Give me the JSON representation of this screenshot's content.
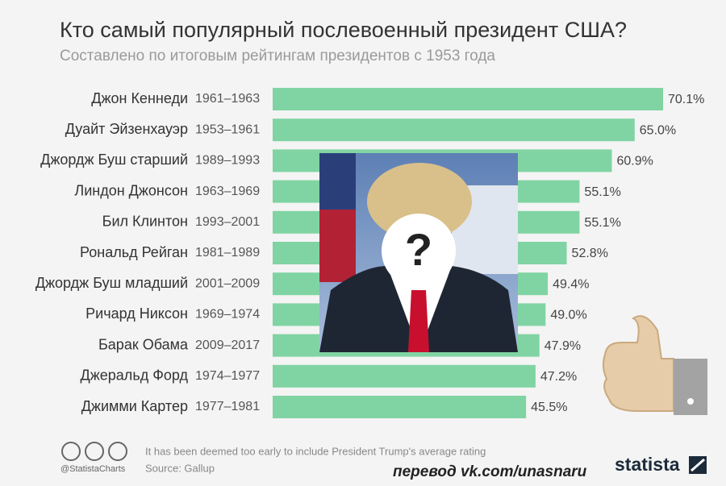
{
  "chart_data": {
    "type": "bar",
    "orientation": "horizontal",
    "title": "Кто самый популярный послевоенный президент США?",
    "subtitle": "Составлено по итоговым рейтингам президентов с 1953 года",
    "categories": [
      "Джон Кеннеди",
      "Дуайт Эйзенхауэр",
      "Джордж Буш старший",
      "Линдон Джонсон",
      "Бил Клинтон",
      "Рональд Рейган",
      "Джордж Буш младший",
      "Ричард Никсон",
      "Барак Обама",
      "Джеральд Форд",
      "Джимми Картер"
    ],
    "periods": [
      "1961–1963",
      "1953–1961",
      "1989–1993",
      "1963–1969",
      "1993–2001",
      "1981–1989",
      "2001–2009",
      "1969–1974",
      "2009–2017",
      "1974–1977",
      "1977–1981"
    ],
    "values": [
      70.1,
      65.0,
      60.9,
      55.1,
      55.1,
      52.8,
      49.4,
      49.0,
      47.9,
      47.2,
      45.5
    ],
    "value_labels": [
      "70.1%",
      "65.0%",
      "60.9%",
      "55.1%",
      "55.1%",
      "52.8%",
      "49.4%",
      "49.0%",
      "47.9%",
      "47.2%",
      "45.5%"
    ],
    "color": "#80d4a3",
    "image_label": "?",
    "handle": "@StatistaCharts",
    "note": "It has been deemed too early to include President Trump's average rating",
    "source": "Source: Gallup",
    "watermark": "перевод vk.com/unasnaru",
    "brand": "statista"
  }
}
